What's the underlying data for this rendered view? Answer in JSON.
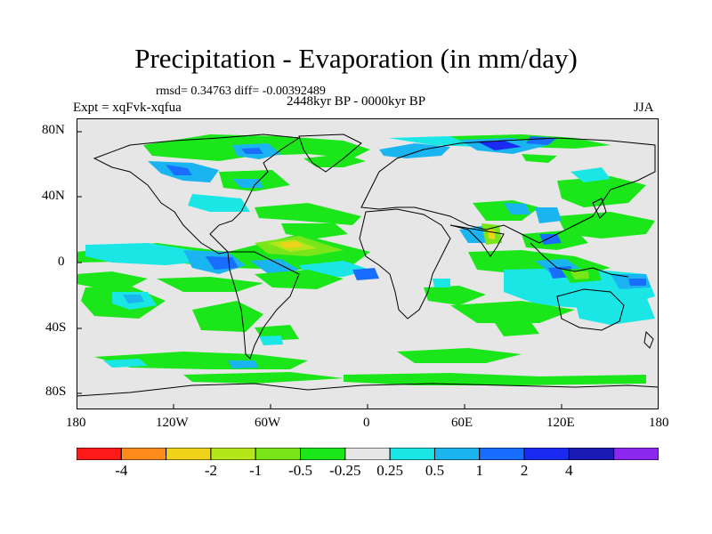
{
  "title": "Precipitation - Evaporation (in mm/day)",
  "stats_line": "rmsd= 0.34763 diff= -0.00392489",
  "experiment_label": "Expt = xqFvk-xqfua",
  "period_label": "2448kyr BP - 0000kyr BP",
  "season_label": "JJA",
  "lat_labels": [
    "80N",
    "40N",
    "0",
    "40S",
    "80S"
  ],
  "lon_labels": [
    "180",
    "120W",
    "60W",
    "0",
    "60E",
    "120E",
    "180"
  ],
  "colorbar": {
    "colors": [
      "#ff1a1a",
      "#ff8c1a",
      "#f0d21a",
      "#b4e61a",
      "#7ae61a",
      "#1ae61a",
      "#e6e6e6",
      "#1ae6e6",
      "#1ab4f0",
      "#1a6eff",
      "#1a2af0",
      "#1a1ab4",
      "#8c28f0"
    ],
    "labels": [
      "-4",
      "-2",
      "-1",
      "-0.5",
      "-0.25",
      "0.25",
      "0.5",
      "1",
      "2",
      "4"
    ]
  },
  "map_background_color": "#e6e6e6"
}
